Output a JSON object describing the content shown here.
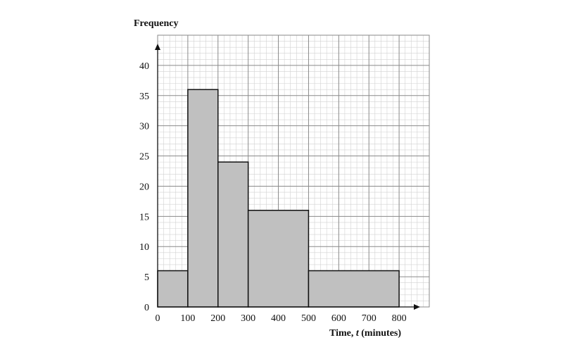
{
  "chart_data": {
    "type": "bar",
    "subtype": "histogram",
    "ylabel": "Frequency",
    "xlabel_parts": [
      "Time, ",
      "t",
      " (minutes)"
    ],
    "bins": [
      {
        "from": 0,
        "to": 100,
        "value": 6
      },
      {
        "from": 100,
        "to": 200,
        "value": 36
      },
      {
        "from": 200,
        "to": 300,
        "value": 24
      },
      {
        "from": 300,
        "to": 500,
        "value": 16
      },
      {
        "from": 500,
        "to": 800,
        "value": 6
      }
    ],
    "xticks": [
      "0",
      "100",
      "200",
      "300",
      "400",
      "500",
      "600",
      "700",
      "800"
    ],
    "yticks": [
      "0",
      "5",
      "10",
      "15",
      "20",
      "25",
      "30",
      "35",
      "40"
    ],
    "xlim": [
      0,
      900
    ],
    "ylim": [
      0,
      45
    ],
    "grid": true,
    "colors": {
      "bar_fill": "#c0c0c0",
      "bar_stroke": "#111111",
      "grid_minor": "#d2d2d2",
      "grid_major": "#8a8a8a"
    }
  }
}
